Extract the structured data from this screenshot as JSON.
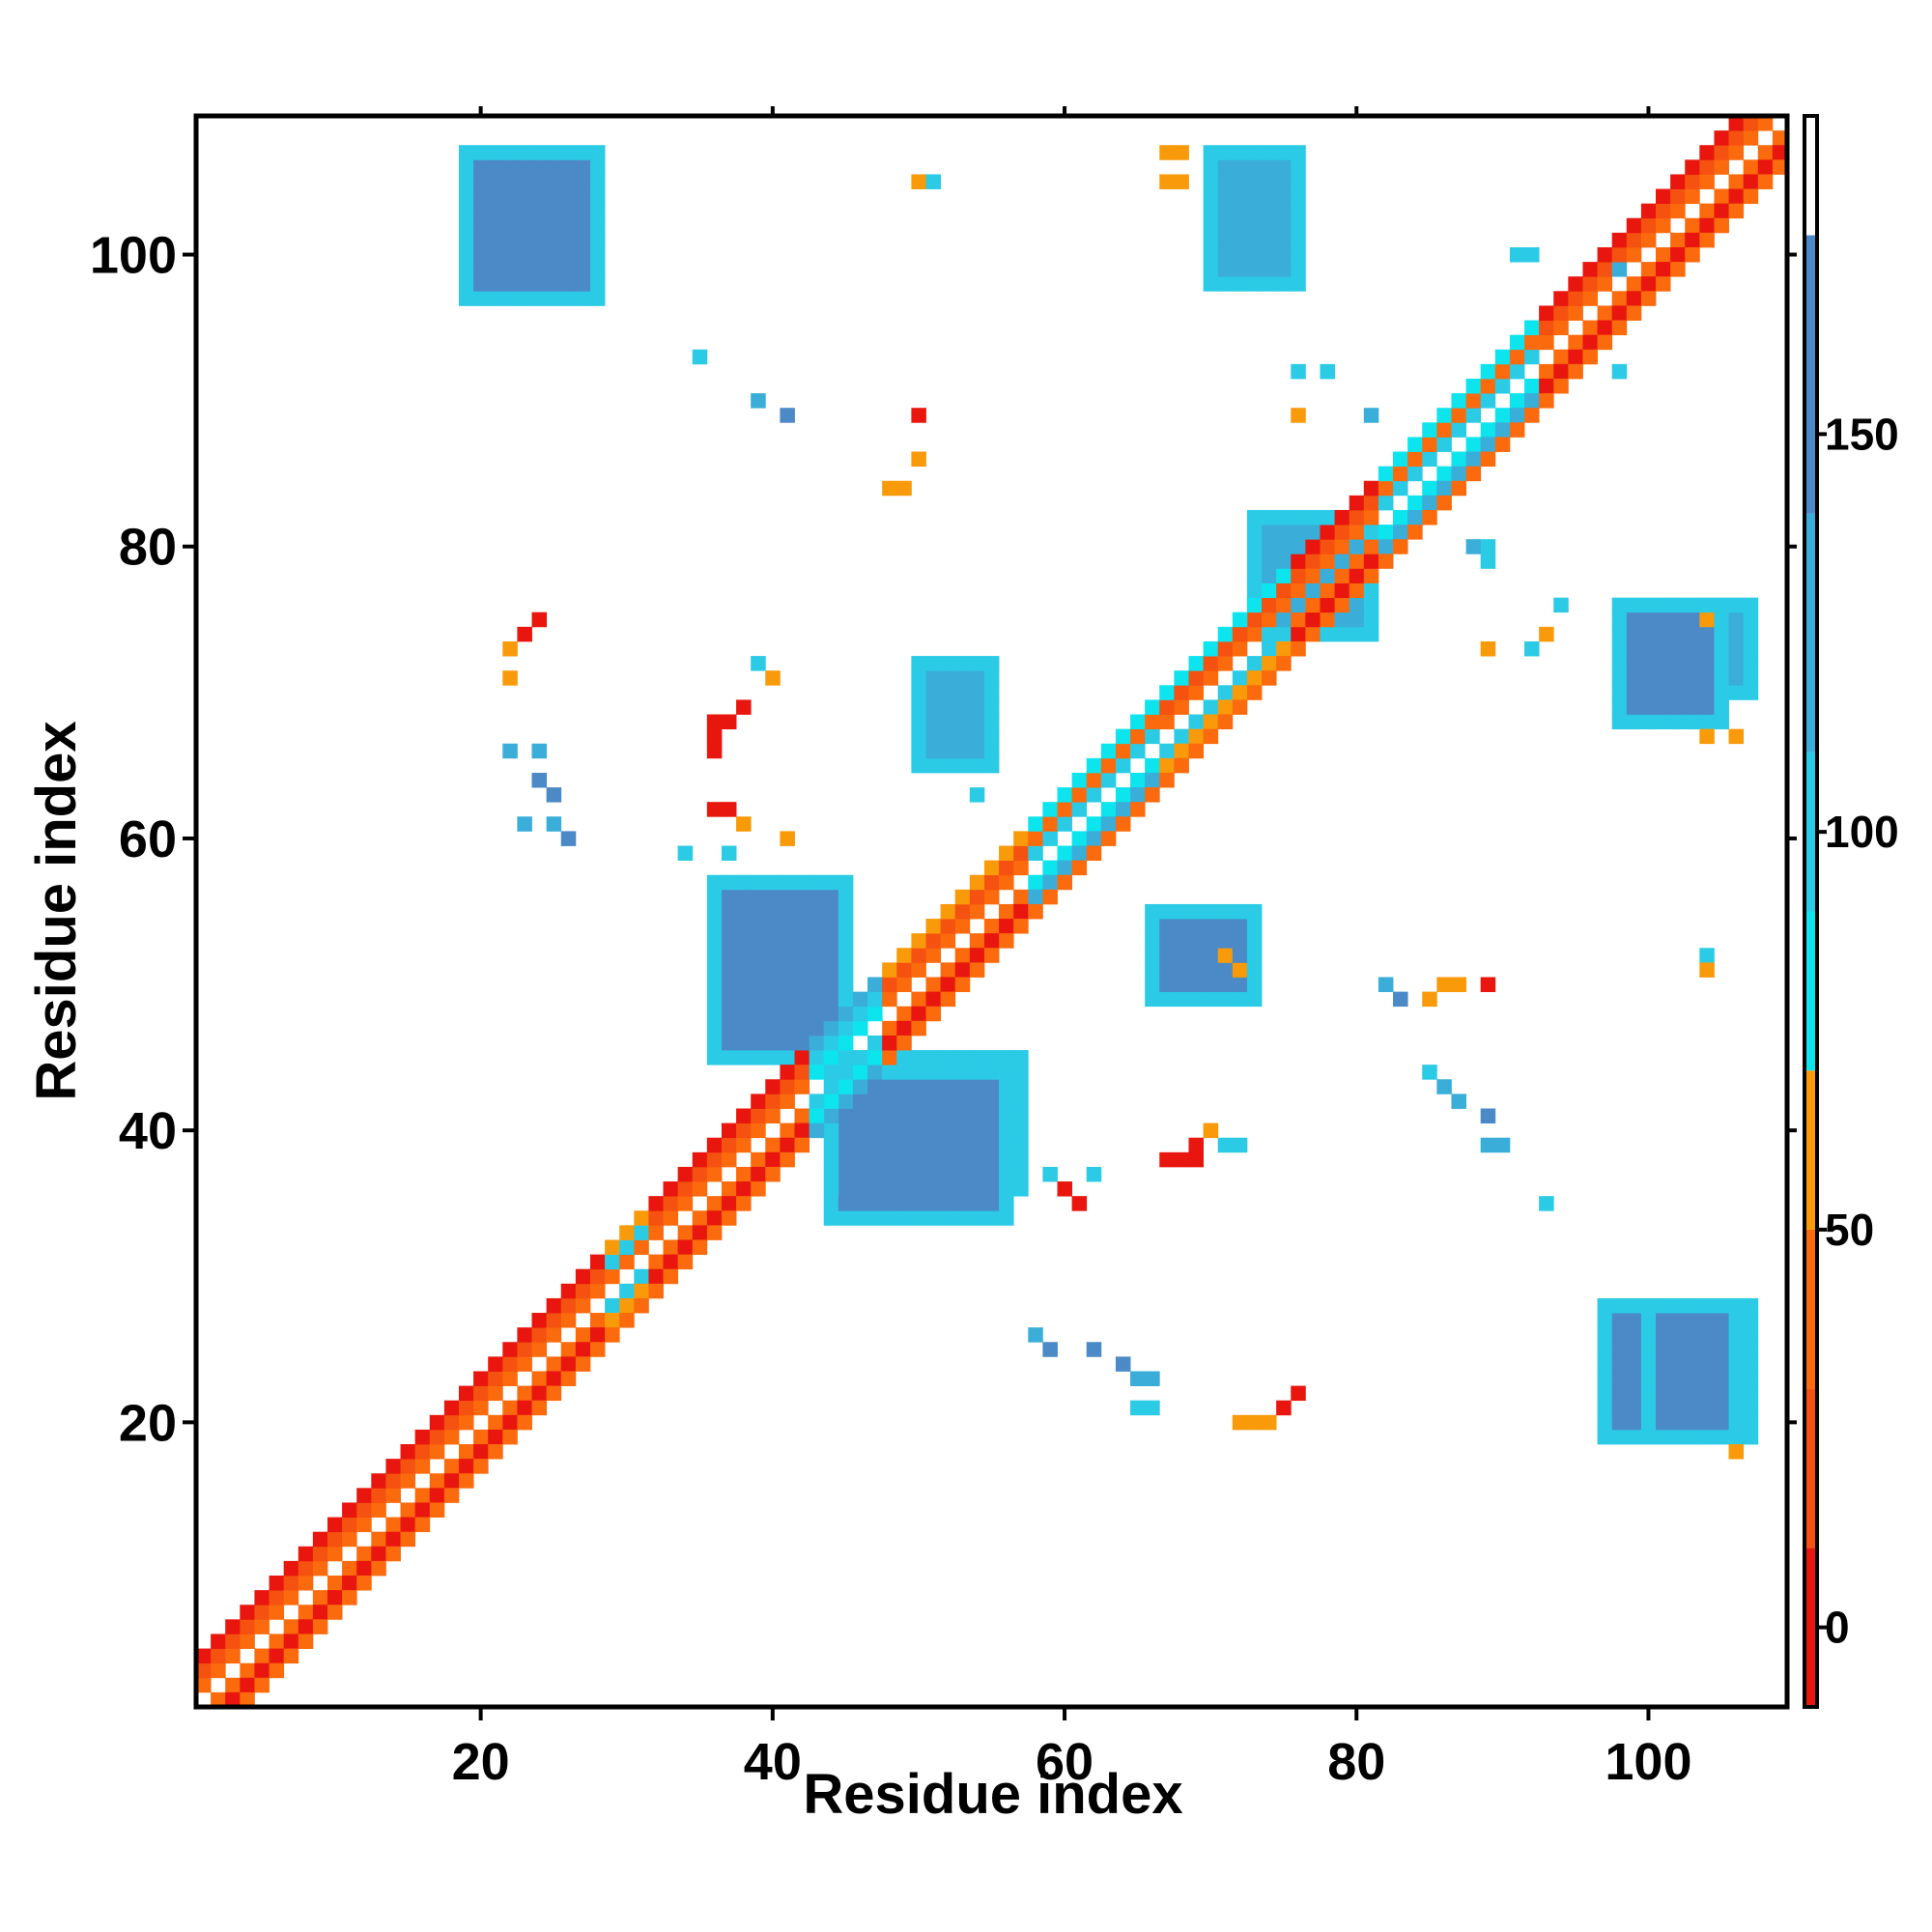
{
  "chart_data": {
    "type": "heatmap",
    "xlabel": "Residue index",
    "ylabel": "Residue index",
    "xlim": [
      0.5,
      109.5
    ],
    "ylim": [
      0.5,
      109.5
    ],
    "x_ticks": [
      20,
      40,
      60,
      80,
      100
    ],
    "y_ticks": [
      20,
      40,
      60,
      80,
      100
    ],
    "colorbar": {
      "range": [
        -10,
        190
      ],
      "ticks": [
        0,
        50,
        100,
        150
      ],
      "bands": [
        {
          "from": -10,
          "to": 10,
          "color": "#e8160e"
        },
        {
          "from": 10,
          "to": 30,
          "color": "#f55110"
        },
        {
          "from": 30,
          "to": 50,
          "color": "#fb6a0c"
        },
        {
          "from": 50,
          "to": 70,
          "color": "#f99a0a"
        },
        {
          "from": 70,
          "to": 90,
          "color": "#0ce4ee"
        },
        {
          "from": 90,
          "to": 110,
          "color": "#2bcbe6"
        },
        {
          "from": 110,
          "to": 140,
          "color": "#3aaed8"
        },
        {
          "from": 140,
          "to": 175,
          "color": "#4b8ac6"
        },
        {
          "from": 175,
          "to": 190,
          "color": "#ffffff"
        }
      ]
    },
    "diagonal": {
      "start": 1,
      "end": 109,
      "segments": [
        {
          "from": 1,
          "to": 28,
          "values": [
            [
              40,
              20,
              5
            ],
            [
              30,
              5,
              40
            ]
          ]
        },
        {
          "from": 29,
          "to": 31,
          "values": [
            [
              40,
              100,
              60
            ],
            [
              100,
              60,
              40
            ]
          ]
        },
        {
          "from": 32,
          "to": 42,
          "values": [
            [
              40,
              20,
              5
            ],
            [
              30,
              5,
              40
            ]
          ]
        },
        {
          "from": 43,
          "to": 47,
          "values": [
            [
              80,
              100,
              120
            ],
            [
              100,
              80,
              120
            ]
          ]
        },
        {
          "from": 48,
          "to": 57,
          "values": [
            [
              40,
              20,
              60
            ],
            [
              30,
              5,
              40
            ]
          ]
        },
        {
          "from": 58,
          "to": 66,
          "values": [
            [
              100,
              40,
              80
            ],
            [
              80,
              120,
              40
            ]
          ]
        },
        {
          "from": 67,
          "to": 75,
          "values": [
            [
              40,
              20,
              80
            ],
            [
              100,
              60,
              40
            ]
          ]
        },
        {
          "from": 76,
          "to": 81,
          "values": [
            [
              40,
              20,
              5
            ],
            [
              30,
              5,
              40
            ]
          ]
        },
        {
          "from": 82,
          "to": 92,
          "values": [
            [
              100,
              40,
              80
            ],
            [
              80,
              120,
              40
            ]
          ]
        },
        {
          "from": 93,
          "to": 109,
          "values": [
            [
              40,
              20,
              5
            ],
            [
              30,
              5,
              40
            ]
          ]
        }
      ]
    },
    "patches": [
      {
        "i": [
          19,
          28
        ],
        "j": [
          97,
          107
        ],
        "value": 150,
        "edge_value": 100
      },
      {
        "j": [
          19,
          28
        ],
        "i": [
          97,
          107
        ],
        "value": 150,
        "edge_value": 100
      },
      {
        "i": [
          70,
          76
        ],
        "j": [
          98,
          107
        ],
        "value": 130,
        "edge_value": 90
      },
      {
        "j": [
          70,
          76
        ],
        "i": [
          98,
          107
        ],
        "value": 130,
        "edge_value": 90
      },
      {
        "i": [
          36,
          45
        ],
        "j": [
          45,
          57
        ],
        "value": 150,
        "edge_value": 100
      },
      {
        "j": [
          36,
          45
        ],
        "i": [
          45,
          57
        ],
        "value": 150,
        "edge_value": 100
      },
      {
        "i": [
          44,
          56
        ],
        "j": [
          34,
          44
        ],
        "value": 150,
        "edge_value": 100
      },
      {
        "i": [
          66,
          73
        ],
        "j": [
          49,
          55
        ],
        "value": 150,
        "edge_value": 100
      },
      {
        "i": [
          50,
          55
        ],
        "j": [
          65,
          72
        ],
        "value": 130,
        "edge_value": 90
      },
      {
        "i": [
          73,
          81
        ],
        "j": [
          74,
          82
        ],
        "value": 130,
        "edge_value": 90
      },
      {
        "i": [
          98,
          105
        ],
        "j": [
          68,
          76
        ],
        "value": 150,
        "edge_value": 100
      },
      {
        "i": [
          100,
          106
        ],
        "j": [
          19,
          28
        ],
        "value": 150,
        "edge_value": 100
      }
    ],
    "points": [
      [
        50,
        105,
        60
      ],
      [
        51,
        105,
        90
      ],
      [
        67,
        107,
        60
      ],
      [
        68,
        107,
        60
      ],
      [
        67,
        105,
        60
      ],
      [
        68,
        105,
        60
      ],
      [
        35,
        93,
        90
      ],
      [
        39,
        90,
        110
      ],
      [
        41,
        89,
        140
      ],
      [
        50,
        89,
        5
      ],
      [
        50,
        86,
        60
      ],
      [
        49,
        84,
        60
      ],
      [
        48,
        84,
        60
      ],
      [
        22,
        73,
        60
      ],
      [
        23,
        74,
        5
      ],
      [
        24,
        75,
        5
      ],
      [
        22,
        71,
        60
      ],
      [
        39,
        72,
        90
      ],
      [
        40,
        71,
        60
      ],
      [
        38,
        69,
        5
      ],
      [
        37,
        68,
        5
      ],
      [
        36,
        68,
        5
      ],
      [
        36,
        67,
        5
      ],
      [
        36,
        66,
        5
      ],
      [
        22,
        66,
        110
      ],
      [
        24,
        66,
        110
      ],
      [
        24,
        64,
        140
      ],
      [
        25,
        63,
        140
      ],
      [
        23,
        61,
        110
      ],
      [
        25,
        61,
        110
      ],
      [
        26,
        60,
        140
      ],
      [
        36,
        62,
        5
      ],
      [
        37,
        62,
        5
      ],
      [
        38,
        61,
        60
      ],
      [
        34,
        59,
        90
      ],
      [
        37,
        59,
        90
      ],
      [
        76,
        92,
        90
      ],
      [
        78,
        92,
        90
      ],
      [
        76,
        89,
        60
      ],
      [
        81,
        89,
        110
      ],
      [
        89,
        79,
        90
      ],
      [
        94,
        76,
        90
      ],
      [
        93,
        74,
        60
      ],
      [
        92,
        73,
        90
      ],
      [
        89,
        73,
        60
      ],
      [
        104,
        75,
        60
      ],
      [
        104,
        67,
        60
      ],
      [
        106,
        67,
        60
      ],
      [
        104,
        52,
        90
      ],
      [
        104,
        51,
        60
      ],
      [
        82,
        50,
        110
      ],
      [
        83,
        49,
        140
      ],
      [
        85,
        49,
        60
      ],
      [
        86,
        50,
        60
      ],
      [
        87,
        50,
        60
      ],
      [
        89,
        50,
        5
      ],
      [
        71,
        52,
        60
      ],
      [
        72,
        51,
        60
      ],
      [
        85,
        44,
        90
      ],
      [
        86,
        43,
        110
      ],
      [
        87,
        42,
        110
      ],
      [
        89,
        41,
        140
      ],
      [
        89,
        39,
        110
      ],
      [
        90,
        39,
        110
      ],
      [
        93,
        35,
        90
      ],
      [
        59,
        37,
        90
      ],
      [
        60,
        36,
        5
      ],
      [
        61,
        35,
        5
      ],
      [
        62,
        37,
        90
      ],
      [
        67,
        38,
        5
      ],
      [
        68,
        38,
        5
      ],
      [
        69,
        38,
        5
      ],
      [
        69,
        39,
        5
      ],
      [
        70,
        40,
        60
      ],
      [
        71,
        39,
        90
      ],
      [
        72,
        39,
        90
      ],
      [
        58,
        26,
        110
      ],
      [
        59,
        25,
        140
      ],
      [
        62,
        25,
        140
      ],
      [
        64,
        24,
        140
      ],
      [
        65,
        23,
        110
      ],
      [
        66,
        23,
        110
      ],
      [
        65,
        21,
        90
      ],
      [
        66,
        21,
        90
      ],
      [
        72,
        20,
        60
      ],
      [
        73,
        20,
        60
      ],
      [
        74,
        20,
        60
      ],
      [
        75,
        21,
        5
      ],
      [
        76,
        22,
        5
      ],
      [
        106,
        18,
        60
      ],
      [
        91,
        100,
        90
      ],
      [
        92,
        100,
        90
      ],
      [
        98,
        99,
        110
      ],
      [
        98,
        92,
        90
      ],
      [
        88,
        80,
        110
      ],
      [
        89,
        80,
        90
      ],
      [
        41,
        60,
        60
      ],
      [
        54,
        63,
        90
      ]
    ]
  }
}
